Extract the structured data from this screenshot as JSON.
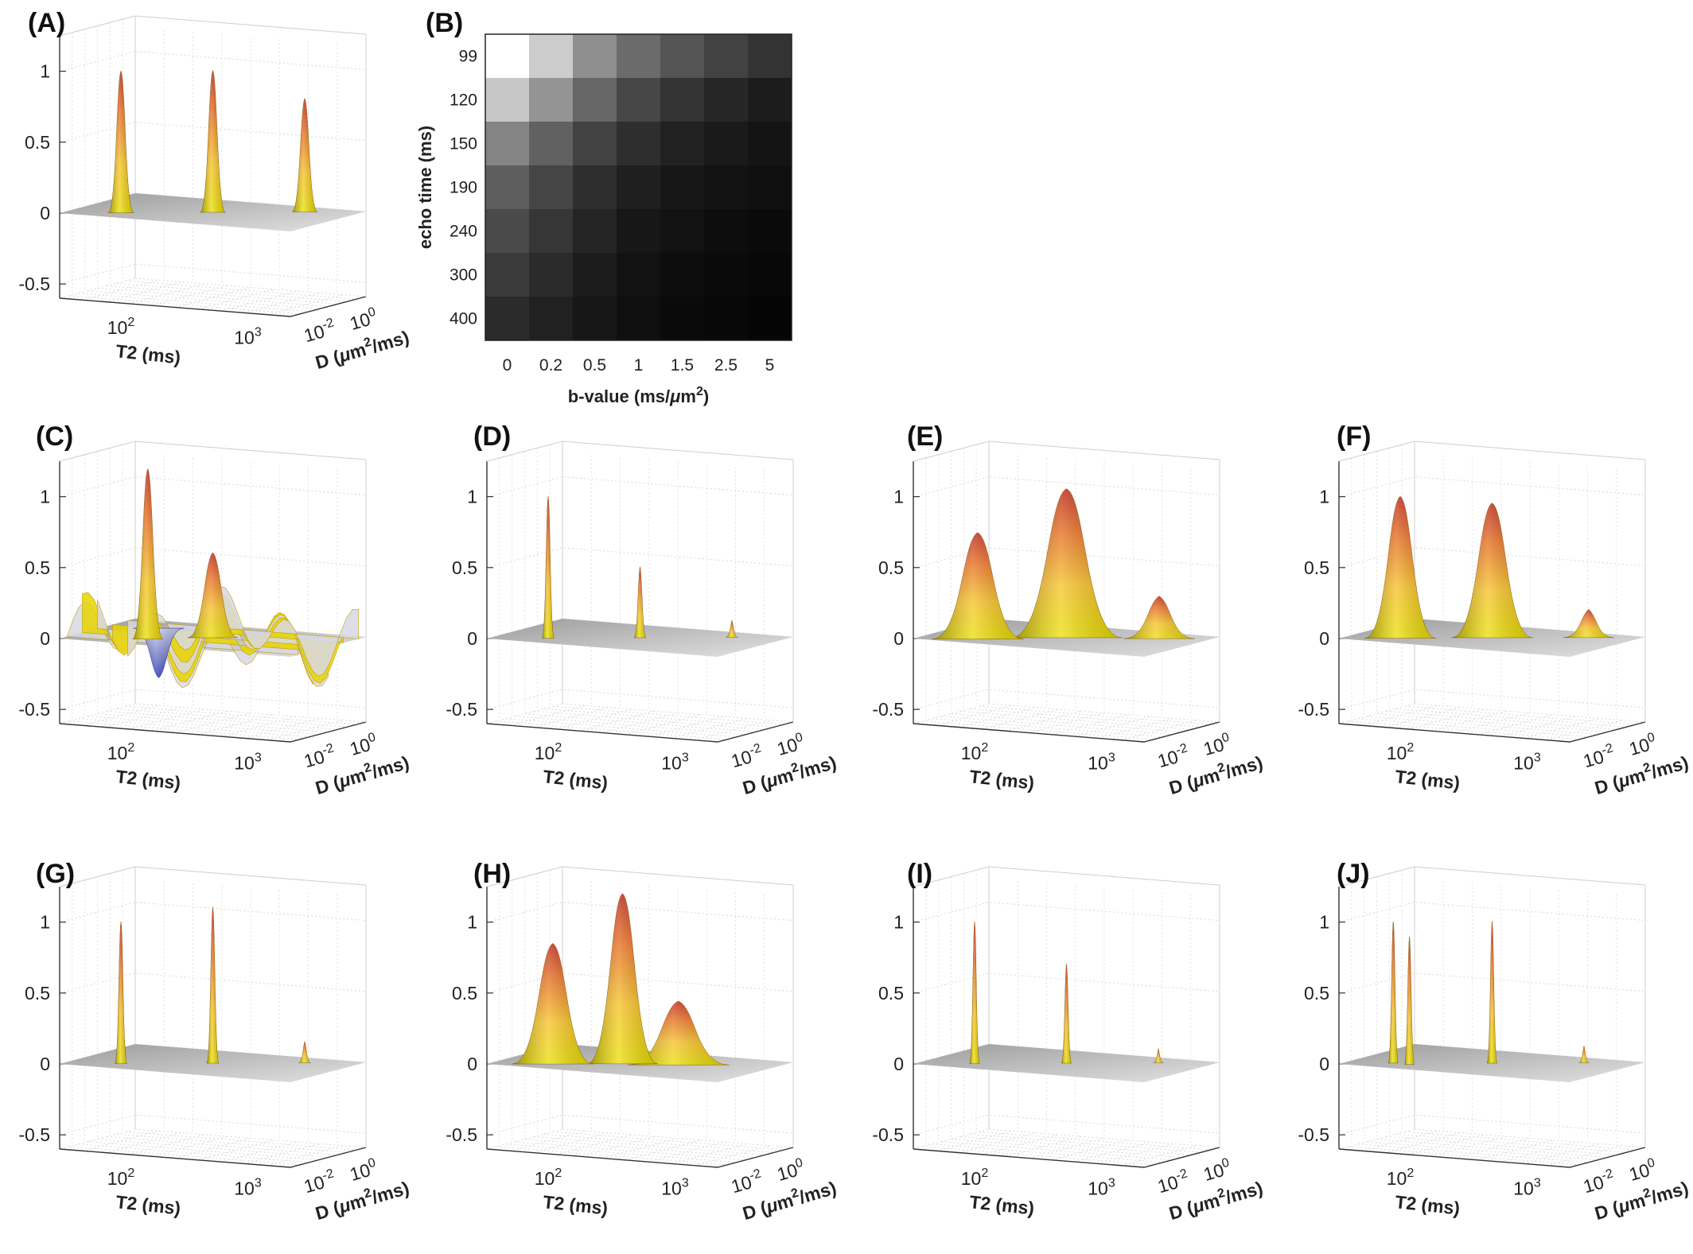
{
  "chart_data": [
    {
      "panel": "(A)",
      "type": "surface",
      "xlabel": "T2 (ms)",
      "ylabel_base": "D (",
      "ylabel_mu": "μ",
      "ylabel_m": "m",
      "ylabel_exp": "2",
      "ylabel_tail": "/ms)",
      "zticks": [
        "1",
        "0.5",
        "0",
        "-0.5"
      ],
      "zlim": [
        -0.5,
        1
      ],
      "xticks": [
        {
          "base": "10",
          "exp": "2"
        },
        {
          "base": "10",
          "exp": "3"
        }
      ],
      "yticks": [
        {
          "base": "10",
          "exp": "-2"
        },
        {
          "base": "10",
          "exp": "0"
        }
      ],
      "peaks": [
        {
          "t2_pos": 0.2,
          "d_pos": 0.2,
          "height": 1.0,
          "width": 0.025
        },
        {
          "t2_pos": 0.5,
          "d_pos": 0.5,
          "height": 1.0,
          "width": 0.025
        },
        {
          "t2_pos": 0.8,
          "d_pos": 0.8,
          "height": 0.8,
          "width": 0.025
        }
      ]
    },
    {
      "panel": "(B)",
      "type": "heatmap",
      "xlabel_prefix": "b-value (ms/",
      "xlabel_mu": "μ",
      "xlabel_m": "m",
      "xlabel_exp": "2",
      "xlabel_suffix": ")",
      "ylabel": "echo time (ms)",
      "x_categories": [
        "0",
        "0.2",
        "0.5",
        "1",
        "1.5",
        "2.5",
        "5"
      ],
      "y_categories": [
        "99",
        "120",
        "150",
        "190",
        "240",
        "300",
        "400"
      ],
      "values": [
        [
          1.0,
          0.8,
          0.56,
          0.42,
          0.33,
          0.26,
          0.2
        ],
        [
          0.78,
          0.58,
          0.4,
          0.28,
          0.2,
          0.15,
          0.11
        ],
        [
          0.52,
          0.38,
          0.26,
          0.18,
          0.13,
          0.1,
          0.08
        ],
        [
          0.37,
          0.27,
          0.18,
          0.12,
          0.09,
          0.07,
          0.06
        ],
        [
          0.29,
          0.21,
          0.14,
          0.09,
          0.07,
          0.05,
          0.04
        ],
        [
          0.23,
          0.17,
          0.11,
          0.07,
          0.05,
          0.04,
          0.03
        ],
        [
          0.17,
          0.13,
          0.09,
          0.06,
          0.04,
          0.03,
          0.02
        ]
      ]
    },
    {
      "panel": "(C)",
      "type": "surface",
      "xlabel": "T2 (ms)",
      "ylabel_base": "D (",
      "ylabel_mu": "μ",
      "ylabel_m": "m",
      "ylabel_exp": "2",
      "ylabel_tail": "/ms)",
      "zticks": [
        "1",
        "0.5",
        "0",
        "-0.5"
      ],
      "zlim": [
        -0.5,
        1
      ],
      "xticks": [
        {
          "base": "10",
          "exp": "2"
        },
        {
          "base": "10",
          "exp": "3"
        }
      ],
      "yticks": [
        {
          "base": "10",
          "exp": "-2"
        },
        {
          "base": "10",
          "exp": "0"
        }
      ],
      "oscillatory": true,
      "peaks": [
        {
          "t2_pos": 0.3,
          "d_pos": 0.25,
          "height": 1.2,
          "width": 0.03
        },
        {
          "t2_pos": 0.5,
          "d_pos": 0.5,
          "height": 0.6,
          "width": 0.05
        },
        {
          "t2_pos": 0.2,
          "d_pos": 0.7,
          "height": -0.35,
          "width": 0.05
        }
      ]
    },
    {
      "panel": "(D)",
      "type": "surface",
      "xlabel": "T2 (ms)",
      "ylabel_base": "D (",
      "ylabel_mu": "μ",
      "ylabel_m": "m",
      "ylabel_exp": "2",
      "ylabel_tail": "/ms)",
      "zticks": [
        "1",
        "0.5",
        "0",
        "-0.5"
      ],
      "zlim": [
        -0.5,
        1
      ],
      "xticks": [
        {
          "base": "10",
          "exp": "2"
        },
        {
          "base": "10",
          "exp": "3"
        }
      ],
      "yticks": [
        {
          "base": "10",
          "exp": "-2"
        },
        {
          "base": "10",
          "exp": "0"
        }
      ],
      "peaks": [
        {
          "t2_pos": 0.2,
          "d_pos": 0.2,
          "height": 1.0,
          "width": 0.012
        },
        {
          "t2_pos": 0.5,
          "d_pos": 0.5,
          "height": 0.5,
          "width": 0.012
        },
        {
          "t2_pos": 0.8,
          "d_pos": 0.8,
          "height": 0.12,
          "width": 0.012
        }
      ]
    },
    {
      "panel": "(E)",
      "type": "surface",
      "xlabel": "T2 (ms)",
      "ylabel_base": "D (",
      "ylabel_mu": "μ",
      "ylabel_m": "m",
      "ylabel_exp": "2",
      "ylabel_tail": "/ms)",
      "zticks": [
        "1",
        "0.5",
        "0",
        "-0.5"
      ],
      "zlim": [
        -0.5,
        1
      ],
      "xticks": [
        {
          "base": "10",
          "exp": "2"
        },
        {
          "base": "10",
          "exp": "3"
        }
      ],
      "yticks": [
        {
          "base": "10",
          "exp": "-2"
        },
        {
          "base": "10",
          "exp": "0"
        }
      ],
      "peaks": [
        {
          "t2_pos": 0.22,
          "d_pos": 0.18,
          "height": 0.75,
          "width": 0.09
        },
        {
          "t2_pos": 0.5,
          "d_pos": 0.5,
          "height": 1.05,
          "width": 0.11
        },
        {
          "t2_pos": 0.82,
          "d_pos": 0.75,
          "height": 0.3,
          "width": 0.07
        }
      ]
    },
    {
      "panel": "(F)",
      "type": "surface",
      "xlabel": "T2 (ms)",
      "ylabel_base": "D (",
      "ylabel_mu": "μ",
      "ylabel_m": "m",
      "ylabel_exp": "2",
      "ylabel_tail": "/ms)",
      "zticks": [
        "1",
        "0.5",
        "0",
        "-0.5"
      ],
      "zlim": [
        -0.5,
        1
      ],
      "xticks": [
        {
          "base": "10",
          "exp": "2"
        },
        {
          "base": "10",
          "exp": "3"
        }
      ],
      "yticks": [
        {
          "base": "10",
          "exp": "-2"
        },
        {
          "base": "10",
          "exp": "0"
        }
      ],
      "peaks": [
        {
          "t2_pos": 0.2,
          "d_pos": 0.2,
          "height": 1.0,
          "width": 0.07
        },
        {
          "t2_pos": 0.5,
          "d_pos": 0.5,
          "height": 0.95,
          "width": 0.08
        },
        {
          "t2_pos": 0.82,
          "d_pos": 0.8,
          "height": 0.2,
          "width": 0.05
        }
      ]
    },
    {
      "panel": "(G)",
      "type": "surface",
      "xlabel": "T2 (ms)",
      "ylabel_base": "D (",
      "ylabel_mu": "μ",
      "ylabel_m": "m",
      "ylabel_exp": "2",
      "ylabel_tail": "/ms)",
      "zticks": [
        "1",
        "0.5",
        "0",
        "-0.5"
      ],
      "zlim": [
        -0.5,
        1
      ],
      "xticks": [
        {
          "base": "10",
          "exp": "2"
        },
        {
          "base": "10",
          "exp": "3"
        }
      ],
      "yticks": [
        {
          "base": "10",
          "exp": "-2"
        },
        {
          "base": "10",
          "exp": "0"
        }
      ],
      "peaks": [
        {
          "t2_pos": 0.2,
          "d_pos": 0.2,
          "height": 1.0,
          "width": 0.012
        },
        {
          "t2_pos": 0.5,
          "d_pos": 0.5,
          "height": 1.1,
          "width": 0.012
        },
        {
          "t2_pos": 0.8,
          "d_pos": 0.8,
          "height": 0.15,
          "width": 0.012
        }
      ]
    },
    {
      "panel": "(H)",
      "type": "surface",
      "xlabel": "T2 (ms)",
      "ylabel_base": "D (",
      "ylabel_mu": "μ",
      "ylabel_m": "m",
      "ylabel_exp": "2",
      "ylabel_tail": "/ms)",
      "zticks": [
        "1",
        "0.5",
        "0",
        "-0.5"
      ],
      "zlim": [
        -0.5,
        1
      ],
      "xticks": [
        {
          "base": "10",
          "exp": "2"
        },
        {
          "base": "10",
          "exp": "3"
        }
      ],
      "yticks": [
        {
          "base": "10",
          "exp": "-2"
        },
        {
          "base": "10",
          "exp": "0"
        }
      ],
      "peaks": [
        {
          "t2_pos": 0.22,
          "d_pos": 0.2,
          "height": 0.85,
          "width": 0.08
        },
        {
          "t2_pos": 0.45,
          "d_pos": 0.42,
          "height": 1.2,
          "width": 0.07
        },
        {
          "t2_pos": 0.65,
          "d_pos": 0.55,
          "height": 0.45,
          "width": 0.1
        }
      ]
    },
    {
      "panel": "(I)",
      "type": "surface",
      "xlabel": "T2 (ms)",
      "ylabel_base": "D (",
      "ylabel_mu": "μ",
      "ylabel_m": "m",
      "ylabel_exp": "2",
      "ylabel_tail": "/ms)",
      "zticks": [
        "1",
        "0.5",
        "0",
        "-0.5"
      ],
      "zlim": [
        -0.5,
        1
      ],
      "xticks": [
        {
          "base": "10",
          "exp": "2"
        },
        {
          "base": "10",
          "exp": "3"
        }
      ],
      "yticks": [
        {
          "base": "10",
          "exp": "-2"
        },
        {
          "base": "10",
          "exp": "0"
        }
      ],
      "peaks": [
        {
          "t2_pos": 0.2,
          "d_pos": 0.2,
          "height": 1.0,
          "width": 0.01
        },
        {
          "t2_pos": 0.5,
          "d_pos": 0.5,
          "height": 0.7,
          "width": 0.01
        },
        {
          "t2_pos": 0.8,
          "d_pos": 0.8,
          "height": 0.1,
          "width": 0.01
        }
      ]
    },
    {
      "panel": "(J)",
      "type": "surface",
      "xlabel": "T2 (ms)",
      "ylabel_base": "D (",
      "ylabel_mu": "μ",
      "ylabel_m": "m",
      "ylabel_exp": "2",
      "ylabel_tail": "/ms)",
      "zticks": [
        "1",
        "0.5",
        "0",
        "-0.5"
      ],
      "zlim": [
        -0.5,
        1
      ],
      "xticks": [
        {
          "base": "10",
          "exp": "2"
        },
        {
          "base": "10",
          "exp": "3"
        }
      ],
      "yticks": [
        {
          "base": "10",
          "exp": "-2"
        },
        {
          "base": "10",
          "exp": "0"
        }
      ],
      "peaks": [
        {
          "t2_pos": 0.17,
          "d_pos": 0.2,
          "height": 1.0,
          "width": 0.01
        },
        {
          "t2_pos": 0.24,
          "d_pos": 0.2,
          "height": 0.9,
          "width": 0.01
        },
        {
          "t2_pos": 0.5,
          "d_pos": 0.5,
          "height": 1.0,
          "width": 0.01
        },
        {
          "t2_pos": 0.8,
          "d_pos": 0.8,
          "height": 0.12,
          "width": 0.01
        }
      ]
    }
  ],
  "colors": {
    "peak_base": "#e8d800",
    "peak_mid": "#f0a020",
    "peak_top": "#c02010",
    "floor": "#b8b8b8",
    "negative": "#2030b0",
    "grid": "#cfcfcf"
  }
}
